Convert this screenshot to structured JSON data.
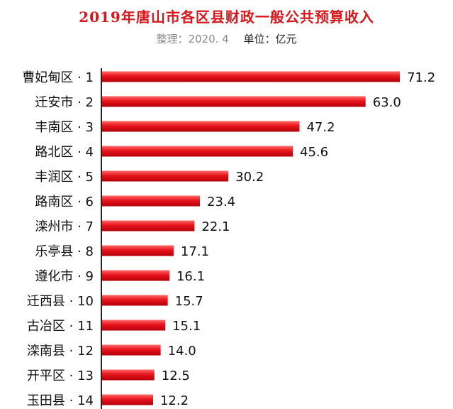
{
  "chart_data": {
    "type": "bar",
    "orientation": "horizontal",
    "title": "2019年唐山市各区县财政一般公共预算收入",
    "note": "整理：2020. 4",
    "unit_label": "单位：亿元",
    "categories": [
      "曹妃甸区 · 1",
      "迁安市 · 2",
      "丰南区 · 3",
      "路北区 · 4",
      "丰润区 · 5",
      "路南区 · 6",
      "滦州市 · 7",
      "乐亭县 · 8",
      "遵化市 · 9",
      "迁西县 · 10",
      "古冶区 · 11",
      "滦南县 · 12",
      "开平区 · 13",
      "玉田县 · 14"
    ],
    "values": [
      71.2,
      63.0,
      47.2,
      45.6,
      30.2,
      23.4,
      22.1,
      17.1,
      16.1,
      15.7,
      15.1,
      14.0,
      12.5,
      12.2
    ],
    "value_labels": [
      "71.2",
      "63.0",
      "47.2",
      "45.6",
      "30.2",
      "23.4",
      "22.1",
      "17.1",
      "16.1",
      "15.7",
      "15.1",
      "14.0",
      "12.5",
      "12.2"
    ],
    "bar_color": "#e8141c",
    "title_color": "#d9161c",
    "grid": false,
    "legend": "none"
  }
}
